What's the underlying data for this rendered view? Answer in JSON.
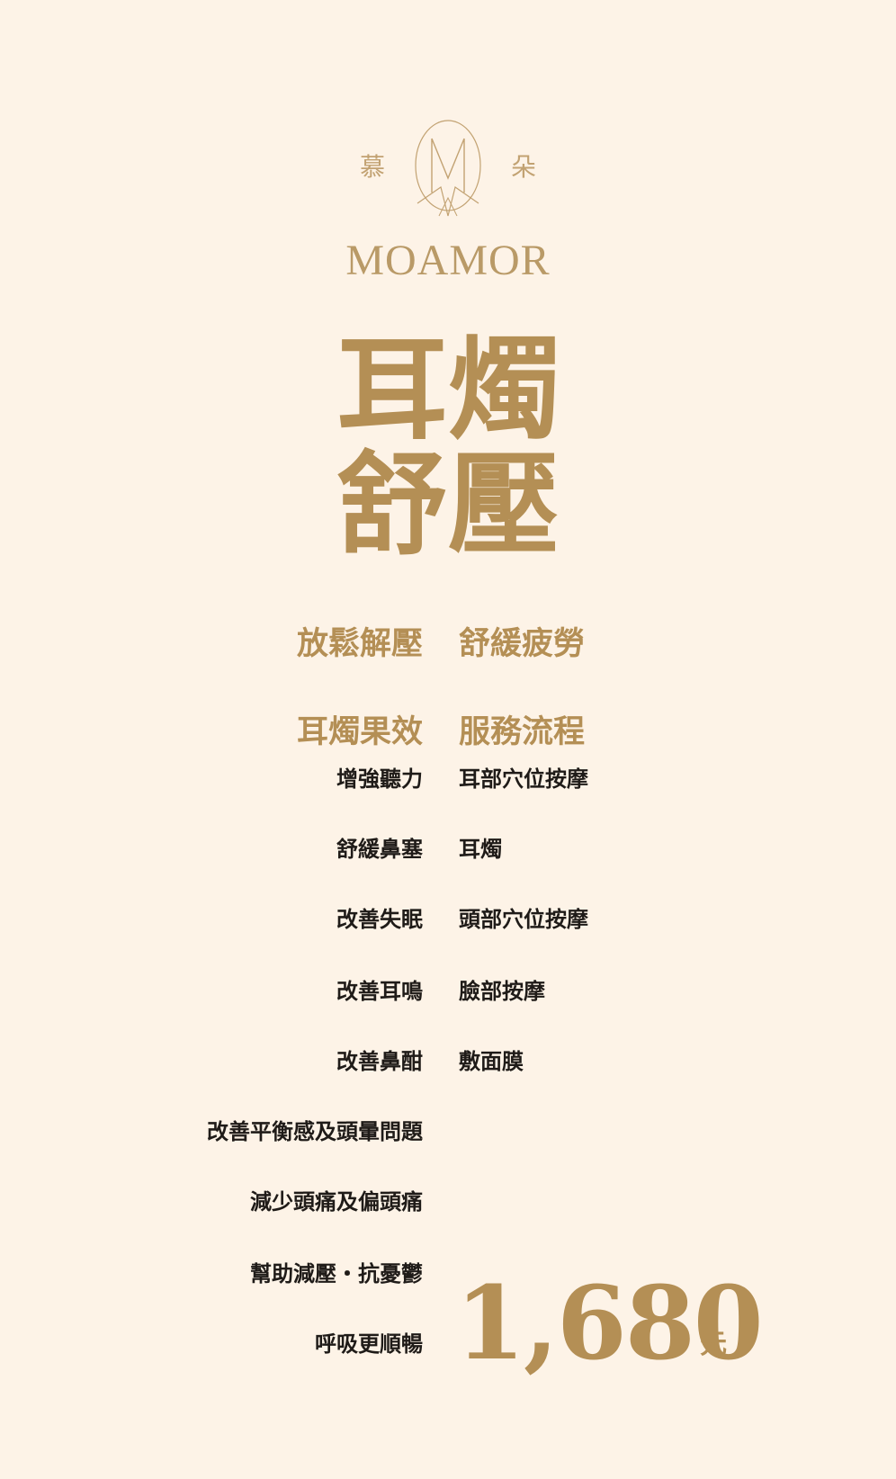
{
  "brand": {
    "logo_left": "慕",
    "logo_right": "朵",
    "wordmark": "MOAMOR"
  },
  "title": {
    "line1": "耳燭",
    "line2": "舒壓"
  },
  "taglines": {
    "left": "放鬆解壓",
    "right": "舒緩疲勞"
  },
  "sections": {
    "left_heading": "耳燭果效",
    "right_heading": "服務流程"
  },
  "effects": [
    "增強聽力",
    "舒緩鼻塞",
    "改善失眠",
    "改善耳鳴",
    "改善鼻酣",
    "改善平衡感及頭暈問題",
    "減少頭痛及偏頭痛",
    "幫助減壓・抗憂鬱",
    "呼吸更順暢"
  ],
  "process": [
    "耳部穴位按摩",
    "耳燭",
    "頭部穴位按摩",
    "臉部按摩",
    "敷面膜"
  ],
  "price": {
    "amount": "1,680",
    "currency": "元"
  },
  "colors": {
    "background": "#fdf3e7",
    "gold": "#b48f55",
    "text": "#1f1b18"
  }
}
